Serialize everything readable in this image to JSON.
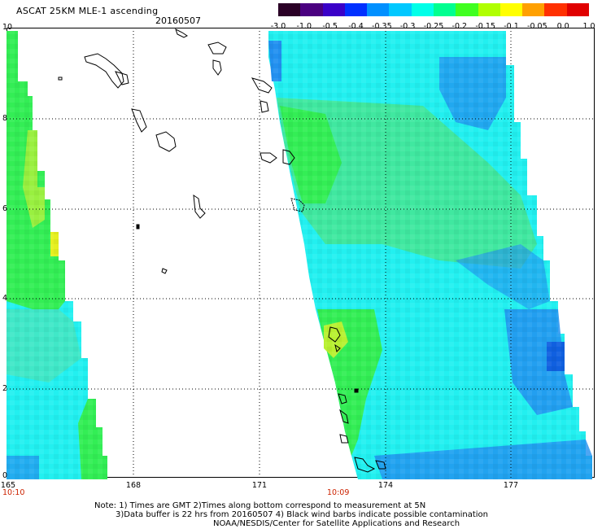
{
  "header": {
    "title": "ASCAT 25KM MLE-1 ascending",
    "date": "20160507"
  },
  "colorbar": {
    "ticks": [
      "-3.0",
      "-1.0",
      "-0.5",
      "-0.4",
      "-0.35",
      "-0.3",
      "-0.25",
      "-0.2",
      "-0.15",
      "-0.1",
      "-0.05",
      "0.0",
      "1.0"
    ],
    "colors": [
      "#2a0026",
      "#4a0080",
      "#3a00c8",
      "#0030ff",
      "#0090ff",
      "#00c8ff",
      "#00ffe8",
      "#00ff90",
      "#40ff20",
      "#b0ff00",
      "#ffff00",
      "#ffa000",
      "#ff3000",
      "#e00000"
    ]
  },
  "axes": {
    "y_ticks": [
      "10",
      "8",
      "6",
      "4",
      "2",
      "0"
    ],
    "x_ticks": [
      "165",
      "168",
      "171",
      "174",
      "177"
    ],
    "y_range": [
      0,
      10
    ],
    "x_range": [
      165,
      179
    ],
    "grid": "dotted"
  },
  "pass_times": [
    "10:10",
    "10:09"
  ],
  "notes": [
    "Note: 1) Times are GMT 2)Times along bottom correspond to measurement at 5N",
    "3)Data buffer is 22 hrs from 20160507 4) Black wind barbs indicate possible contamination",
    "NOAA/NESDIS/Center for Satellite Applications and Research"
  ],
  "swath_colors": {
    "green": "#33ee55",
    "lime": "#99f040",
    "cyan": "#22f0f0",
    "aqua": "#40e8c8",
    "blue": "#2290f0",
    "deep_blue": "#1060e0",
    "yellow": "#e6f020"
  }
}
